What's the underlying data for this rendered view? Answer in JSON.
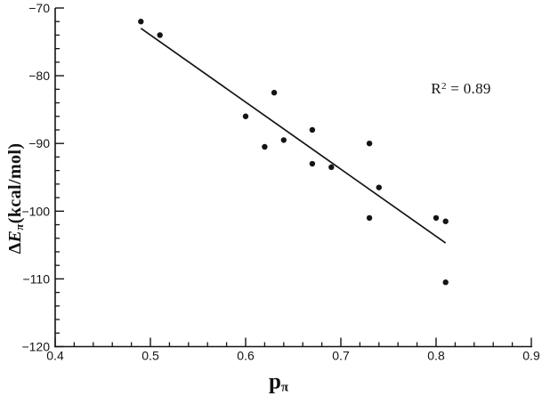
{
  "figure": {
    "background": "#ffffff",
    "ink": "#141414"
  },
  "labels": {
    "y_axis": {
      "delta": "Δ",
      "symbol": "E",
      "subscript": "π",
      "unit": "(kcal/mol)"
    },
    "x_axis": {
      "symbol": "p",
      "subscript": "π"
    },
    "annotation": {
      "base": "R",
      "superscript": "2",
      "rest": " = 0.89"
    }
  },
  "chart_data": {
    "type": "scatter",
    "title": "",
    "xlabel": "pπ",
    "ylabel": "ΔEπ (kcal/mol)",
    "xlim": [
      0.4,
      0.9
    ],
    "ylim": [
      -120,
      -70
    ],
    "x_major_ticks": [
      0.4,
      0.5,
      0.6,
      0.7,
      0.8,
      0.9
    ],
    "x_tick_labels": [
      "0.4",
      "0.5",
      "0.6",
      "0.7",
      "0.8",
      "0.9"
    ],
    "x_minor_step": 0.02,
    "y_major_ticks": [
      -120,
      -110,
      -100,
      -90,
      -80,
      -70
    ],
    "y_tick_labels": [
      "−120",
      "−110",
      "−100",
      "−90",
      "−80",
      "−70"
    ],
    "y_minor_step": 2,
    "grid": false,
    "legend": null,
    "axes_style": "open-left-bottom, ticks inward",
    "marker": {
      "shape": "circle",
      "color": "#141414",
      "radius_px": 3.2
    },
    "points": [
      [
        0.49,
        -72
      ],
      [
        0.51,
        -74
      ],
      [
        0.6,
        -86
      ],
      [
        0.63,
        -82.5
      ],
      [
        0.62,
        -90.5
      ],
      [
        0.64,
        -89.5
      ],
      [
        0.67,
        -88
      ],
      [
        0.67,
        -93
      ],
      [
        0.69,
        -93.5
      ],
      [
        0.73,
        -90
      ],
      [
        0.74,
        -96.5
      ],
      [
        0.73,
        -101
      ],
      [
        0.8,
        -101
      ],
      [
        0.81,
        -101.5
      ],
      [
        0.81,
        -110.5
      ]
    ],
    "trend_line": {
      "x1": 0.49,
      "y1": -73,
      "x2": 0.81,
      "y2": -104.7
    },
    "r_squared": 0.89,
    "annotation_text": "R² = 0.89"
  }
}
